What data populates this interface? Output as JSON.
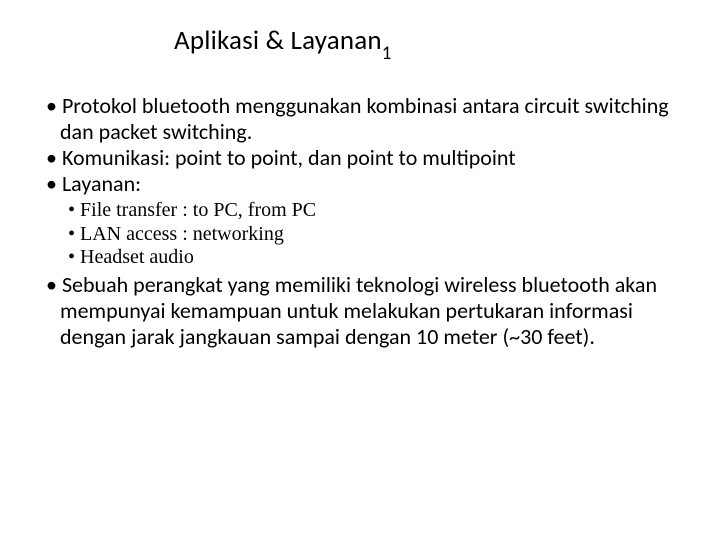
{
  "title": {
    "main": "Aplikasi & Layanan",
    "sub": "1"
  },
  "bullets": {
    "b1": "Protokol bluetooth menggunakan kombinasi antara circuit switching dan packet switching.",
    "b2": "Komunikasi: point to point, dan point to multipoint",
    "b3": "Layanan:",
    "b3_sub1": "File transfer : to PC, from PC",
    "b3_sub2": "LAN access : networking",
    "b3_sub3": "Headset audio",
    "b4": "Sebuah perangkat yang memiliki teknologi wireless bluetooth akan mempunyai kemampuan untuk melakukan pertukaran informasi dengan jarak jangkauan sampai dengan 10 meter (~30 feet)."
  },
  "colors": {
    "text": "#000000",
    "background": "#ffffff"
  },
  "typography": {
    "title_fontsize": 27,
    "body_fontsize": 22,
    "sub_fontsize": 20,
    "body_family": "Calibri",
    "sub_family": "Times New Roman"
  }
}
